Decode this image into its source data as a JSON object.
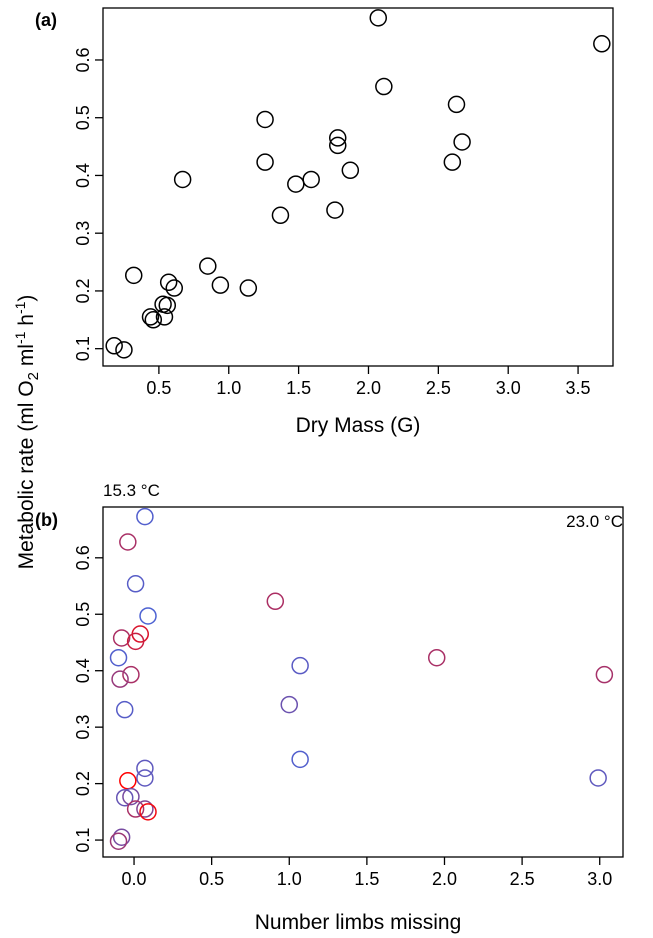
{
  "ylabel_text": "Metabolic rate (ml O",
  "ylabel_sub": "2",
  "ylabel_mid": " ml",
  "ylabel_sup1": "-1",
  "ylabel_mid2": " h",
  "ylabel_sup2": "-1",
  "ylabel_end": ")",
  "color_scale": {
    "low_label": "15.3 °C",
    "high_label": "23.0 °C",
    "low_color": "#4169e1",
    "high_color": "#ff0000"
  },
  "chart_data": [
    {
      "panel_label": "(a)",
      "type": "scatter",
      "xlabel": "Dry Mass (G)",
      "xlim": [
        0.1,
        3.75
      ],
      "ylim": [
        0.07,
        0.69
      ],
      "xticks": [
        "0.5",
        "1.0",
        "1.5",
        "2.0",
        "2.5",
        "3.0",
        "3.5"
      ],
      "yticks": [
        "0.1",
        "0.2",
        "0.3",
        "0.4",
        "0.5",
        "0.6"
      ],
      "marker": "open-circle",
      "marker_color": "#000000",
      "points": [
        {
          "x": 0.18,
          "y": 0.105
        },
        {
          "x": 0.25,
          "y": 0.098
        },
        {
          "x": 0.32,
          "y": 0.227
        },
        {
          "x": 0.44,
          "y": 0.155
        },
        {
          "x": 0.46,
          "y": 0.15
        },
        {
          "x": 0.53,
          "y": 0.177
        },
        {
          "x": 0.54,
          "y": 0.155
        },
        {
          "x": 0.56,
          "y": 0.175
        },
        {
          "x": 0.57,
          "y": 0.215
        },
        {
          "x": 0.61,
          "y": 0.205
        },
        {
          "x": 0.67,
          "y": 0.393
        },
        {
          "x": 0.85,
          "y": 0.243
        },
        {
          "x": 0.94,
          "y": 0.21
        },
        {
          "x": 1.14,
          "y": 0.205
        },
        {
          "x": 1.26,
          "y": 0.497
        },
        {
          "x": 1.26,
          "y": 0.423
        },
        {
          "x": 1.37,
          "y": 0.331
        },
        {
          "x": 1.48,
          "y": 0.385
        },
        {
          "x": 1.59,
          "y": 0.393
        },
        {
          "x": 1.76,
          "y": 0.34
        },
        {
          "x": 1.78,
          "y": 0.465
        },
        {
          "x": 1.78,
          "y": 0.452
        },
        {
          "x": 1.87,
          "y": 0.409
        },
        {
          "x": 2.07,
          "y": 0.673
        },
        {
          "x": 2.11,
          "y": 0.554
        },
        {
          "x": 2.6,
          "y": 0.423
        },
        {
          "x": 2.63,
          "y": 0.523
        },
        {
          "x": 2.67,
          "y": 0.458
        },
        {
          "x": 3.67,
          "y": 0.628
        }
      ]
    },
    {
      "panel_label": "(b)",
      "type": "scatter",
      "xlabel": "Number limbs missing",
      "xlim": [
        -0.2,
        3.15
      ],
      "ylim": [
        0.07,
        0.69
      ],
      "xticks": [
        "0.0",
        "0.5",
        "1.0",
        "1.5",
        "2.0",
        "2.5",
        "3.0"
      ],
      "yticks": [
        "0.1",
        "0.2",
        "0.3",
        "0.4",
        "0.5",
        "0.6"
      ],
      "marker": "open-circle",
      "color_by": "temperature",
      "temp_range": [
        15.3,
        23.0
      ],
      "points": [
        {
          "x": 0.07,
          "y": 0.673,
          "t": 16.0
        },
        {
          "x": -0.04,
          "y": 0.628,
          "t": 19.5
        },
        {
          "x": 0.01,
          "y": 0.554,
          "t": 16.2
        },
        {
          "x": 0.09,
          "y": 0.497,
          "t": 15.8
        },
        {
          "x": -0.08,
          "y": 0.458,
          "t": 19.6
        },
        {
          "x": 0.04,
          "y": 0.465,
          "t": 21.5
        },
        {
          "x": 0.01,
          "y": 0.452,
          "t": 20.8
        },
        {
          "x": -0.1,
          "y": 0.423,
          "t": 16.0
        },
        {
          "x": -0.02,
          "y": 0.393,
          "t": 19.5
        },
        {
          "x": -0.09,
          "y": 0.385,
          "t": 18.8
        },
        {
          "x": -0.06,
          "y": 0.331,
          "t": 16.2
        },
        {
          "x": 0.07,
          "y": 0.227,
          "t": 16.5
        },
        {
          "x": 0.07,
          "y": 0.21,
          "t": 16.5
        },
        {
          "x": -0.04,
          "y": 0.205,
          "t": 23.0
        },
        {
          "x": -0.02,
          "y": 0.177,
          "t": 17.5
        },
        {
          "x": -0.06,
          "y": 0.175,
          "t": 16.8
        },
        {
          "x": 0.01,
          "y": 0.155,
          "t": 19.5
        },
        {
          "x": 0.07,
          "y": 0.155,
          "t": 18.0
        },
        {
          "x": 0.09,
          "y": 0.15,
          "t": 22.5
        },
        {
          "x": -0.08,
          "y": 0.105,
          "t": 17.5
        },
        {
          "x": -0.1,
          "y": 0.098,
          "t": 19.0
        },
        {
          "x": 0.91,
          "y": 0.523,
          "t": 19.6
        },
        {
          "x": 1.07,
          "y": 0.409,
          "t": 16.3
        },
        {
          "x": 1.0,
          "y": 0.34,
          "t": 17.0
        },
        {
          "x": 1.07,
          "y": 0.243,
          "t": 16.0
        },
        {
          "x": 1.95,
          "y": 0.423,
          "t": 19.5
        },
        {
          "x": 3.03,
          "y": 0.393,
          "t": 19.4
        },
        {
          "x": 2.99,
          "y": 0.21,
          "t": 16.5
        }
      ]
    }
  ]
}
